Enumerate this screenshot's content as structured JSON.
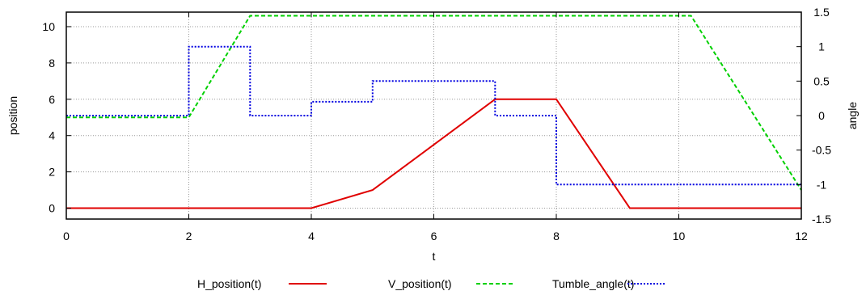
{
  "chart_data": {
    "type": "line",
    "xlabel": "t",
    "ylabel": "position",
    "y2label": "angle",
    "xlim": [
      0,
      12
    ],
    "ylim": [
      -0.6,
      10.8
    ],
    "y2lim": [
      -1.5,
      1.5
    ],
    "xticks": [
      "0",
      "2",
      "4",
      "6",
      "8",
      "10",
      "12"
    ],
    "yticks": [
      "0",
      "2",
      "4",
      "6",
      "8",
      "10"
    ],
    "y2ticks": [
      "-1.5",
      "-1",
      "-0.5",
      "0",
      "0.5",
      "1",
      "1.5"
    ],
    "grid": true,
    "legend_position": "bottom",
    "series": [
      {
        "name": "H_position(t)",
        "axis": "y",
        "color": "#e00000",
        "style": "solid",
        "x": [
          0,
          4,
          5,
          7,
          8,
          9.2,
          12
        ],
        "y": [
          0,
          0,
          1,
          6,
          6,
          0,
          0
        ]
      },
      {
        "name": "V_position(t)",
        "axis": "y",
        "color": "#00d000",
        "style": "dashed",
        "x": [
          0,
          2,
          3,
          10.2,
          12
        ],
        "y": [
          5,
          5,
          10.6,
          10.6,
          1
        ]
      },
      {
        "name": "Tumble_angle(t)",
        "axis": "y2",
        "color": "#0000e0",
        "style": "dotted",
        "x": [
          0,
          2,
          2,
          3,
          3,
          4,
          4,
          5,
          5,
          7,
          7,
          8,
          8,
          12
        ],
        "y": [
          0,
          0,
          1,
          1,
          0,
          0,
          0.2,
          0.2,
          0.5,
          0.5,
          0,
          0,
          -1,
          -1
        ]
      }
    ]
  }
}
